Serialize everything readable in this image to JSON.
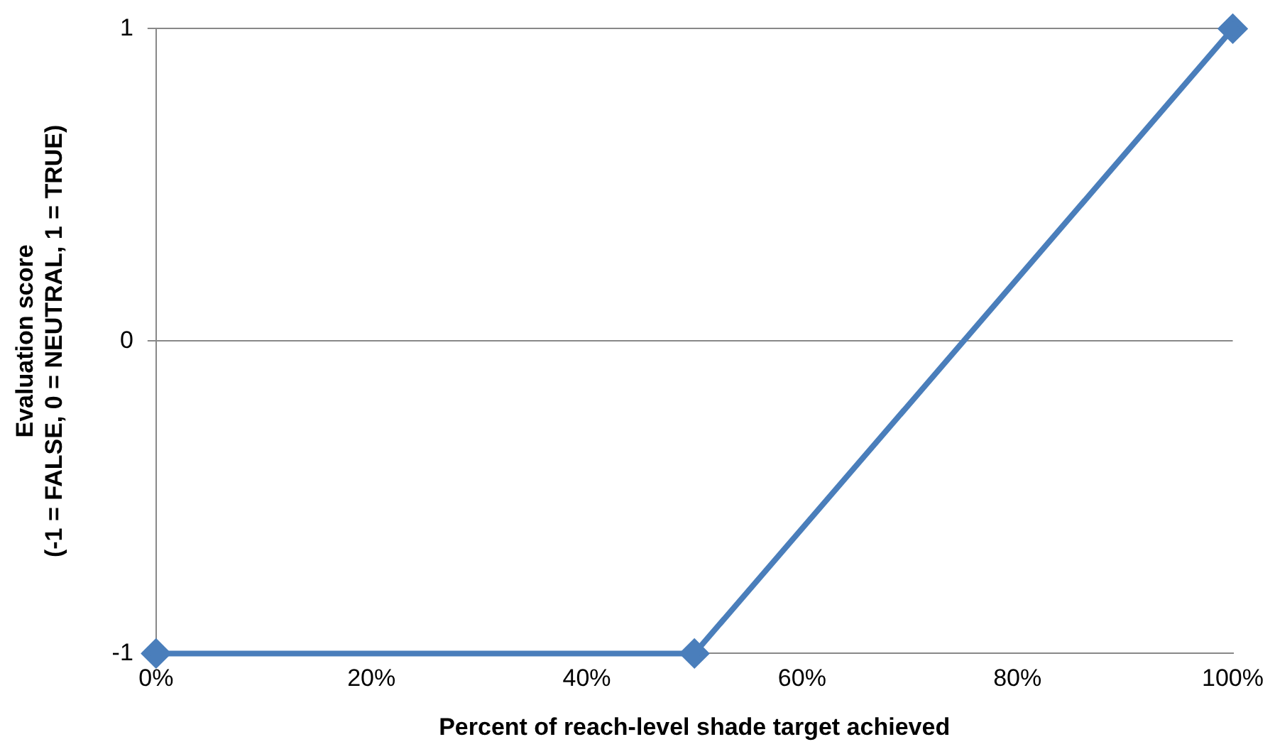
{
  "chart_data": {
    "type": "line",
    "xlabel": "Percent of reach-level shade target achieved",
    "ylabel": "Evaluation score\n(-1 = FALSE, 0 = NEUTRAL, 1 = TRUE)",
    "x": [
      0,
      50,
      100
    ],
    "series": [
      {
        "color": "#4a7ebb",
        "values": [
          -1,
          -1,
          1
        ]
      }
    ],
    "xlim": [
      0,
      100
    ],
    "xticks": [
      {
        "value": 0,
        "label": "0%"
      },
      {
        "value": 20,
        "label": "20%"
      },
      {
        "value": 40,
        "label": "40%"
      },
      {
        "value": 60,
        "label": "60%"
      },
      {
        "value": 80,
        "label": "80%"
      },
      {
        "value": 100,
        "label": "100%"
      }
    ],
    "ylim": [
      -1,
      1
    ],
    "yticks": [
      -1,
      0,
      1
    ],
    "grid": "y",
    "marker": "diamond",
    "line_style": "solid"
  }
}
